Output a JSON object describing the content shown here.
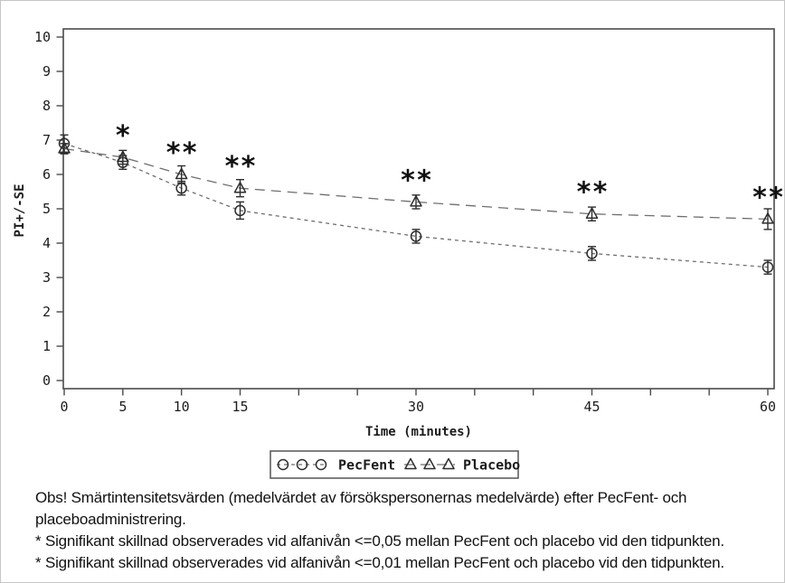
{
  "figure": {
    "title": "PecFent vs Placebo pain intensity figure"
  },
  "chart_data": {
    "type": "line",
    "x": [
      0,
      5,
      10,
      15,
      30,
      45,
      60
    ],
    "x_ticks": [
      0,
      5,
      10,
      15,
      20,
      25,
      30,
      35,
      40,
      45,
      50,
      55,
      60
    ],
    "x_tick_labels_shown": [
      0,
      5,
      10,
      15,
      30,
      45,
      60
    ],
    "xlabel": "Time (minutes)",
    "ylabel": "PI+/-SE",
    "ylim": [
      0,
      10
    ],
    "xlim": [
      0,
      60
    ],
    "y_ticks": [
      0,
      1,
      2,
      3,
      4,
      5,
      6,
      7,
      8,
      9,
      10
    ],
    "grid": false,
    "legend_position": "bottom-center",
    "series": [
      {
        "name": "PecFent",
        "marker": "circle",
        "dash": "short",
        "values": [
          6.9,
          6.35,
          5.6,
          4.95,
          4.2,
          3.7,
          3.3
        ],
        "se": [
          0.25,
          0.2,
          0.2,
          0.25,
          0.2,
          0.2,
          0.2
        ]
      },
      {
        "name": "Placebo",
        "marker": "triangle",
        "dash": "long",
        "values": [
          6.75,
          6.5,
          6.0,
          5.6,
          5.2,
          4.85,
          4.7
        ],
        "se": [
          0.15,
          0.2,
          0.25,
          0.25,
          0.2,
          0.2,
          0.3
        ]
      }
    ],
    "significance": [
      {
        "x": 5,
        "label": "*"
      },
      {
        "x": 10,
        "label": "**"
      },
      {
        "x": 15,
        "label": "**"
      },
      {
        "x": 30,
        "label": "**"
      },
      {
        "x": 45,
        "label": "**"
      },
      {
        "x": 60,
        "label": "**"
      }
    ]
  },
  "legend": {
    "items": [
      {
        "name": "PecFent",
        "marker": "circle-icon"
      },
      {
        "name": "Placebo",
        "marker": "triangle-icon"
      }
    ]
  },
  "caption": {
    "lines": [
      "Obs! Smärtintensitetsvärden (medelvärdet av försökspersonernas medelvärde) efter PecFent- och",
      "placeboadministrering.",
      "* Signifikant skillnad observerades vid alfanivån <=0,05 mellan PecFent och placebo vid den tidpunkten.",
      "* Signifikant skillnad observerades vid alfanivån <=0,01 mellan PecFent och placebo vid den tidpunkten."
    ]
  },
  "colors": {
    "line": "#6e6e6e",
    "marker": "#2e2e2e",
    "text": "#1c1c1c",
    "frame": "#4a4a4a",
    "legend_border": "#555555",
    "background": "#ffffff"
  }
}
